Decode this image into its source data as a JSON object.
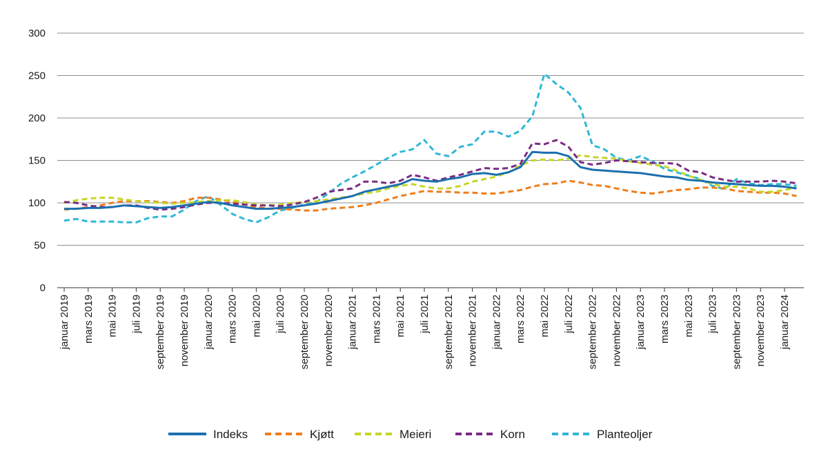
{
  "chart_data": {
    "type": "line",
    "title": "",
    "xlabel": "",
    "ylabel": "",
    "ylim": [
      0,
      300
    ],
    "yticks": [
      0,
      50,
      100,
      150,
      200,
      250,
      300
    ],
    "grid": "horizontal",
    "legend_position": "bottom",
    "x_tick_labels": [
      "januar 2019",
      "mars 2019",
      "mai 2019",
      "juli 2019",
      "september 2019",
      "november 2019",
      "januar 2020",
      "mars 2020",
      "mai 2020",
      "juli 2020",
      "september 2020",
      "november 2020",
      "januar 2021",
      "mars 2021",
      "mai 2021",
      "juli 2021",
      "september 2021",
      "november 2021",
      "januar 2022",
      "mars 2022",
      "mai 2022",
      "juli 2022",
      "september 2022",
      "november 2022",
      "januar 2023",
      "mars 2023",
      "mai 2023",
      "juli 2023",
      "september 2023",
      "november 2023",
      "januar 2024"
    ],
    "x": [
      "2019-01",
      "2019-02",
      "2019-03",
      "2019-04",
      "2019-05",
      "2019-06",
      "2019-07",
      "2019-08",
      "2019-09",
      "2019-10",
      "2019-11",
      "2019-12",
      "2020-01",
      "2020-02",
      "2020-03",
      "2020-04",
      "2020-05",
      "2020-06",
      "2020-07",
      "2020-08",
      "2020-09",
      "2020-10",
      "2020-11",
      "2020-12",
      "2021-01",
      "2021-02",
      "2021-03",
      "2021-04",
      "2021-05",
      "2021-06",
      "2021-07",
      "2021-08",
      "2021-09",
      "2021-10",
      "2021-11",
      "2021-12",
      "2022-01",
      "2022-02",
      "2022-03",
      "2022-04",
      "2022-05",
      "2022-06",
      "2022-07",
      "2022-08",
      "2022-09",
      "2022-10",
      "2022-11",
      "2022-12",
      "2023-01",
      "2023-02",
      "2023-03",
      "2023-04",
      "2023-05",
      "2023-06",
      "2023-07",
      "2023-08",
      "2023-09",
      "2023-10",
      "2023-11",
      "2023-12",
      "2024-01",
      "2024-02"
    ],
    "series": [
      {
        "name": "Indeks",
        "color": "#1b6fae",
        "dash": "solid",
        "values": [
          93,
          93,
          94,
          94,
          95,
          97,
          96,
          95,
          94,
          95,
          97,
          99,
          101,
          100,
          97,
          95,
          93,
          93,
          94,
          95,
          97,
          99,
          102,
          105,
          108,
          113,
          116,
          119,
          122,
          128,
          126,
          125,
          128,
          130,
          134,
          135,
          133,
          136,
          142,
          160,
          159,
          159,
          155,
          142,
          139,
          138,
          137,
          136,
          135,
          133,
          131,
          130,
          127,
          126,
          124,
          123,
          122,
          121,
          120,
          120,
          119,
          117
        ]
      },
      {
        "name": "Kjøtt",
        "color": "#ef7d1a",
        "dash": "dashed",
        "values": [
          92,
          93,
          95,
          97,
          100,
          102,
          102,
          102,
          101,
          100,
          102,
          106,
          106,
          104,
          101,
          98,
          95,
          93,
          93,
          92,
          91,
          91,
          93,
          94,
          95,
          97,
          100,
          104,
          108,
          111,
          114,
          113,
          113,
          112,
          112,
          111,
          111,
          113,
          115,
          119,
          122,
          123,
          126,
          124,
          121,
          120,
          117,
          114,
          112,
          111,
          113,
          115,
          116,
          118,
          118,
          117,
          114,
          113,
          112,
          112,
          111,
          108
        ]
      },
      {
        "name": "Meieri",
        "color": "#c5d626",
        "dash": "dashed",
        "values": [
          100,
          103,
          105,
          106,
          106,
          104,
          102,
          101,
          100,
          99,
          100,
          101,
          102,
          103,
          103,
          101,
          98,
          97,
          98,
          100,
          101,
          102,
          104,
          106,
          108,
          111,
          113,
          117,
          120,
          122,
          119,
          117,
          117,
          120,
          125,
          128,
          131,
          136,
          144,
          150,
          151,
          150,
          152,
          156,
          154,
          153,
          152,
          149,
          147,
          145,
          143,
          138,
          132,
          127,
          122,
          119,
          119,
          117,
          113,
          113,
          115,
          118
        ]
      },
      {
        "name": "Korn",
        "color": "#7b2a83",
        "dash": "dashed",
        "values": [
          101,
          100,
          97,
          95,
          95,
          97,
          97,
          94,
          92,
          93,
          95,
          98,
          100,
          100,
          99,
          98,
          97,
          97,
          96,
          98,
          101,
          106,
          113,
          115,
          117,
          125,
          125,
          123,
          126,
          133,
          130,
          126,
          130,
          133,
          137,
          141,
          140,
          141,
          146,
          170,
          169,
          174,
          166,
          148,
          145,
          147,
          150,
          149,
          148,
          147,
          147,
          146,
          138,
          136,
          130,
          127,
          125,
          125,
          125,
          126,
          125,
          123
        ]
      },
      {
        "name": "Planteoljer",
        "color": "#2fb7d6",
        "dash": "dashed",
        "values": [
          79,
          81,
          78,
          78,
          78,
          77,
          77,
          82,
          84,
          84,
          92,
          102,
          108,
          98,
          87,
          81,
          77,
          83,
          91,
          94,
          98,
          101,
          111,
          122,
          130,
          137,
          145,
          153,
          160,
          163,
          174,
          158,
          155,
          166,
          169,
          184,
          184,
          178,
          185,
          202,
          252,
          240,
          230,
          212,
          168,
          163,
          153,
          150,
          155,
          149,
          140,
          136,
          132,
          128,
          120,
          116,
          128,
          123,
          121,
          122,
          122,
          120
        ]
      }
    ]
  },
  "legend": {
    "items": [
      "Indeks",
      "Kjøtt",
      "Meieri",
      "Korn",
      "Planteoljer"
    ]
  }
}
